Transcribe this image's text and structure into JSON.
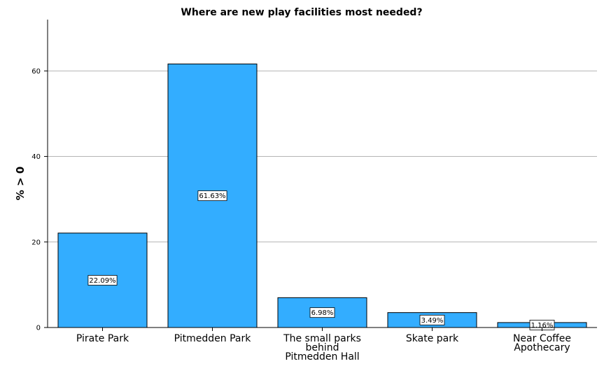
{
  "chart_data": {
    "type": "bar",
    "title": "Where are new play facilities most needed?",
    "xlabel": "",
    "ylabel": "% > 0",
    "ylim": [
      0,
      72
    ],
    "yticks": [
      0,
      20,
      40,
      60
    ],
    "grid": true,
    "categories": [
      [
        "Pirate Park"
      ],
      [
        "Pitmedden Park"
      ],
      [
        "The small parks",
        "behind",
        "Pitmedden Hall"
      ],
      [
        "Skate park"
      ],
      [
        "Near Coffee",
        "Apothecary"
      ]
    ],
    "values": [
      22.09,
      61.63,
      6.98,
      3.49,
      1.16
    ],
    "data_labels": [
      "22.09%",
      "61.63%",
      "6.98%",
      "3.49%",
      "1.16%"
    ],
    "bar_color": "#33adff",
    "bar_stroke": "#000000",
    "grid_color": "#b4b4b4"
  }
}
